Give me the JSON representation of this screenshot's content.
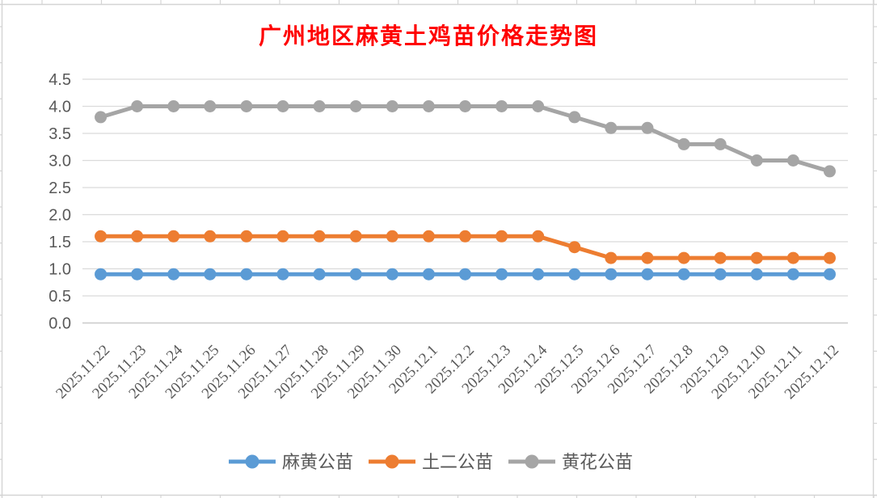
{
  "page": {
    "background_color": "#FFFFFF",
    "sheet_gridline_color": "#D4D4D4"
  },
  "chart_data": {
    "type": "line",
    "title": "广州地区麻黄土鸡苗价格走势图",
    "title_color": "#FF0000",
    "categories": [
      "2025.11.22",
      "2025.11.23",
      "2025.11.24",
      "2025.11.25",
      "2025.11.26",
      "2025.11.27",
      "2025.11.28",
      "2025.11.29",
      "2025.11.30",
      "2025.12.1",
      "2025.12.2",
      "2025.12.3",
      "2025.12.4",
      "2025.12.5",
      "2025.12.6",
      "2025.12.7",
      "2025.12.8",
      "2025.12.9",
      "2025.12.10",
      "2025.12.11",
      "2025.12.12"
    ],
    "series": [
      {
        "name": "麻黄公苗",
        "color": "#5B9BD5",
        "values": [
          0.9,
          0.9,
          0.9,
          0.9,
          0.9,
          0.9,
          0.9,
          0.9,
          0.9,
          0.9,
          0.9,
          0.9,
          0.9,
          0.9,
          0.9,
          0.9,
          0.9,
          0.9,
          0.9,
          0.9,
          0.9
        ]
      },
      {
        "name": "土二公苗",
        "color": "#ED7D31",
        "values": [
          1.6,
          1.6,
          1.6,
          1.6,
          1.6,
          1.6,
          1.6,
          1.6,
          1.6,
          1.6,
          1.6,
          1.6,
          1.6,
          1.4,
          1.2,
          1.2,
          1.2,
          1.2,
          1.2,
          1.2,
          1.2
        ]
      },
      {
        "name": "黄花公苗",
        "color": "#A5A5A5",
        "values": [
          3.8,
          4.0,
          4.0,
          4.0,
          4.0,
          4.0,
          4.0,
          4.0,
          4.0,
          4.0,
          4.0,
          4.0,
          4.0,
          3.8,
          3.6,
          3.6,
          3.3,
          3.3,
          3.0,
          3.0,
          2.8
        ]
      }
    ],
    "yticks": [
      0.0,
      0.5,
      1.0,
      1.5,
      2.0,
      2.5,
      3.0,
      3.5,
      4.0,
      4.5
    ],
    "ylim": [
      0,
      4.5
    ],
    "grid": true,
    "gridline_color": "#DBDBDB",
    "axis_line_color": "#C9C9C9",
    "axis_label_color": "#595959",
    "legend_text_color": "#595959",
    "legend_position": "bottom",
    "xlabel": "",
    "ylabel": ""
  }
}
